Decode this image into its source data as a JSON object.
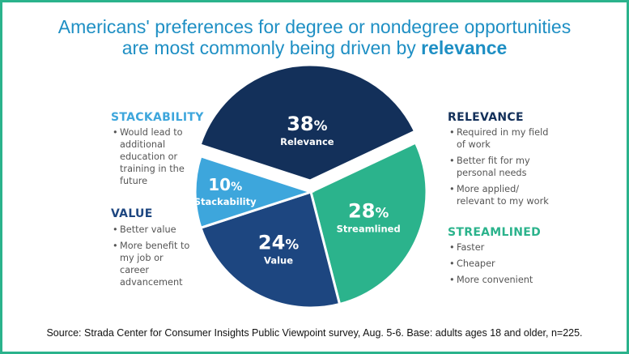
{
  "title": {
    "line1": "Americans' preferences for degree or nondegree opportunities",
    "line2_prefix": "are most commonly being driven by ",
    "line2_bold": "relevance"
  },
  "chart_data": {
    "type": "pie",
    "slices": [
      {
        "label": "Relevance",
        "value": 38,
        "color": "#13305a",
        "exploded": true
      },
      {
        "label": "Streamlined",
        "value": 28,
        "color": "#2bb38c",
        "exploded": false
      },
      {
        "label": "Value",
        "value": 24,
        "color": "#1d4680",
        "exploded": false
      },
      {
        "label": "Stackability",
        "value": 10,
        "color": "#3da6dc",
        "exploded": false
      }
    ],
    "unit": "%"
  },
  "categories": {
    "stackability": {
      "heading": "STACKABILITY",
      "color": "#3da6dc",
      "bullets": [
        "Would lead to additional education or training in the future"
      ]
    },
    "value": {
      "heading": "VALUE",
      "color": "#1d4680",
      "bullets": [
        "Better value",
        "More benefit to my job or career advancement"
      ]
    },
    "relevance": {
      "heading": "RELEVANCE",
      "color": "#13305a",
      "bullets": [
        "Required in my field of work",
        "Better fit for my personal needs",
        "More applied/ relevant to my work"
      ]
    },
    "streamlined": {
      "heading": "STREAMLINED",
      "color": "#2bb38c",
      "bullets": [
        "Faster",
        "Cheaper",
        "More convenient"
      ]
    }
  },
  "source": "Source: Strada Center for Consumer Insights Public Viewpoint survey, Aug. 5-6. Base: adults ages 18 and older, n=225."
}
